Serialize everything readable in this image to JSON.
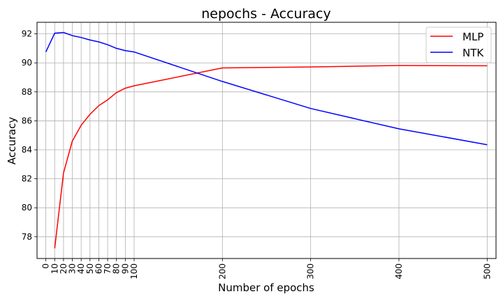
{
  "chart_data": {
    "type": "line",
    "title": "nepochs - Accuracy",
    "xlabel": "Number of epochs",
    "ylabel": "Accuracy",
    "x_ticks": [
      0,
      10,
      20,
      30,
      40,
      50,
      60,
      70,
      80,
      90,
      100,
      200,
      300,
      400,
      500
    ],
    "y_ticks": [
      78,
      80,
      82,
      84,
      86,
      88,
      90,
      92
    ],
    "xlim": [
      -10,
      510
    ],
    "ylim": [
      76.5,
      92.8
    ],
    "grid": true,
    "legend_position": "top-right",
    "series": [
      {
        "name": "MLP",
        "color": "#ff0000",
        "x": [
          10,
          20,
          30,
          40,
          50,
          60,
          70,
          80,
          90,
          100,
          200,
          300,
          400,
          500
        ],
        "y": [
          77.2,
          82.4,
          84.6,
          85.7,
          86.45,
          87.05,
          87.45,
          87.95,
          88.25,
          88.42,
          89.65,
          89.72,
          89.82,
          89.8
        ]
      },
      {
        "name": "NTK",
        "color": "#0000ff",
        "x": [
          0,
          10,
          20,
          30,
          40,
          50,
          60,
          70,
          80,
          90,
          100,
          200,
          300,
          400,
          500
        ],
        "y": [
          90.75,
          92.05,
          92.1,
          91.88,
          91.75,
          91.58,
          91.45,
          91.25,
          91.0,
          90.85,
          90.75,
          88.72,
          86.85,
          85.45,
          84.35
        ]
      }
    ]
  }
}
